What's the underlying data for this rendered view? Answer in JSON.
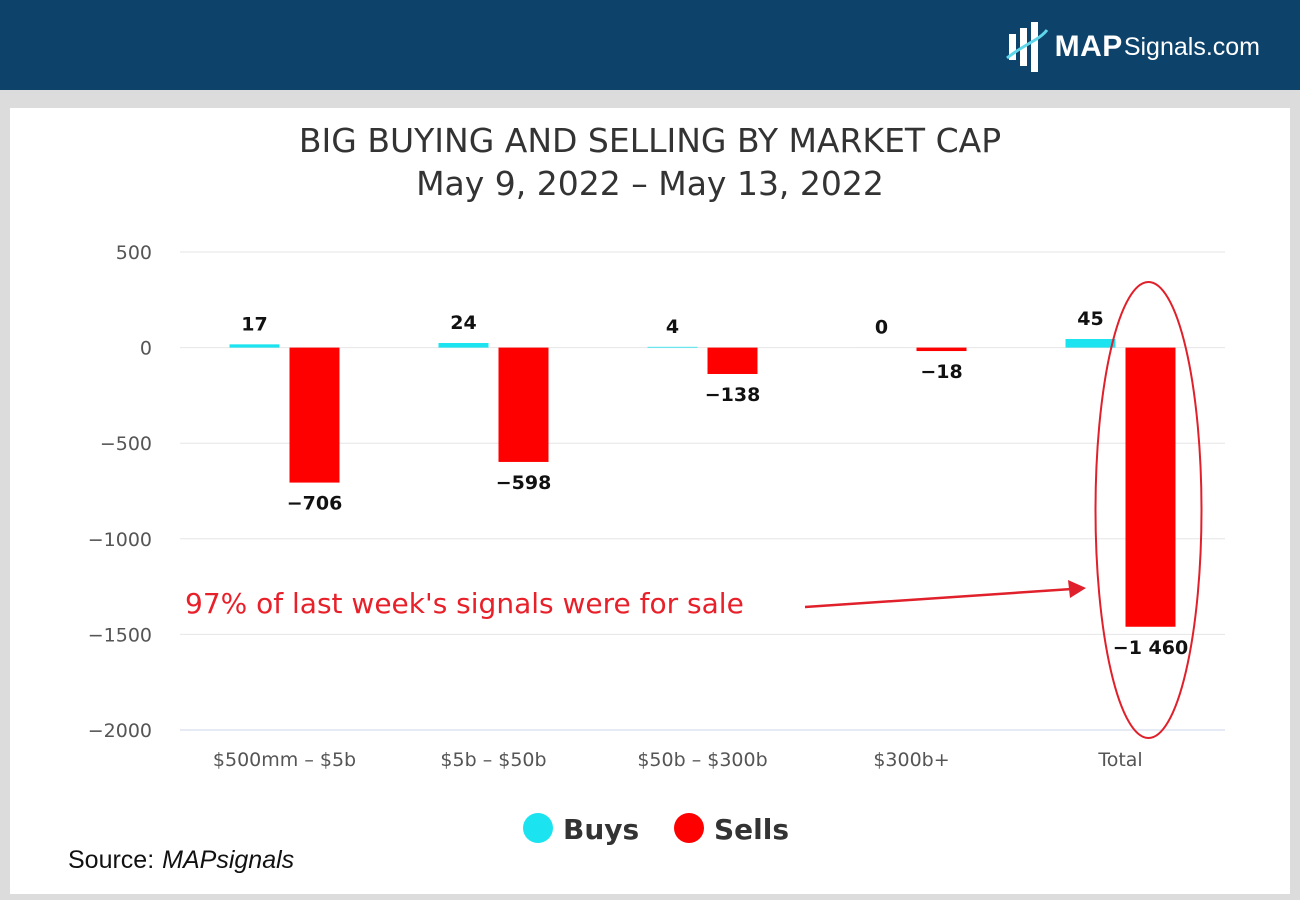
{
  "brand": {
    "logo_bold": "MAP",
    "logo_rest": "Signals.com"
  },
  "source": {
    "label": "Source:",
    "name": "MAPsignals"
  },
  "chart_data": {
    "type": "bar",
    "title": "BIG BUYING AND SELLING BY MARKET CAP",
    "subtitle": "May 9, 2022 – May 13, 2022",
    "xlabel": "",
    "ylabel": "",
    "categories": [
      "$500mm – $5b",
      "$5b – $50b",
      "$50b – $300b",
      "$300b+",
      "Total"
    ],
    "series": [
      {
        "name": "Buys",
        "color": "#1ce3f0",
        "values": [
          17,
          24,
          4,
          0,
          45
        ],
        "labels": [
          "17",
          "24",
          "4",
          "0",
          "45"
        ]
      },
      {
        "name": "Sells",
        "color": "#ff0000",
        "values": [
          -706,
          -598,
          -138,
          -18,
          -1460
        ],
        "labels": [
          "−706",
          "−598",
          "−138",
          "−18",
          "−1 460"
        ]
      }
    ],
    "ylim": [
      -2000,
      500
    ],
    "yticks": [
      500,
      0,
      -500,
      -1000,
      -1500,
      -2000
    ],
    "ytick_labels": [
      "500",
      "0",
      "−500",
      "−1000",
      "−1500",
      "−2000"
    ],
    "grid": true,
    "legend": "bottom-center",
    "annotation": {
      "text": "97% of last week's signals were for sale",
      "color": "#e8202a",
      "target_category": "Total"
    }
  }
}
